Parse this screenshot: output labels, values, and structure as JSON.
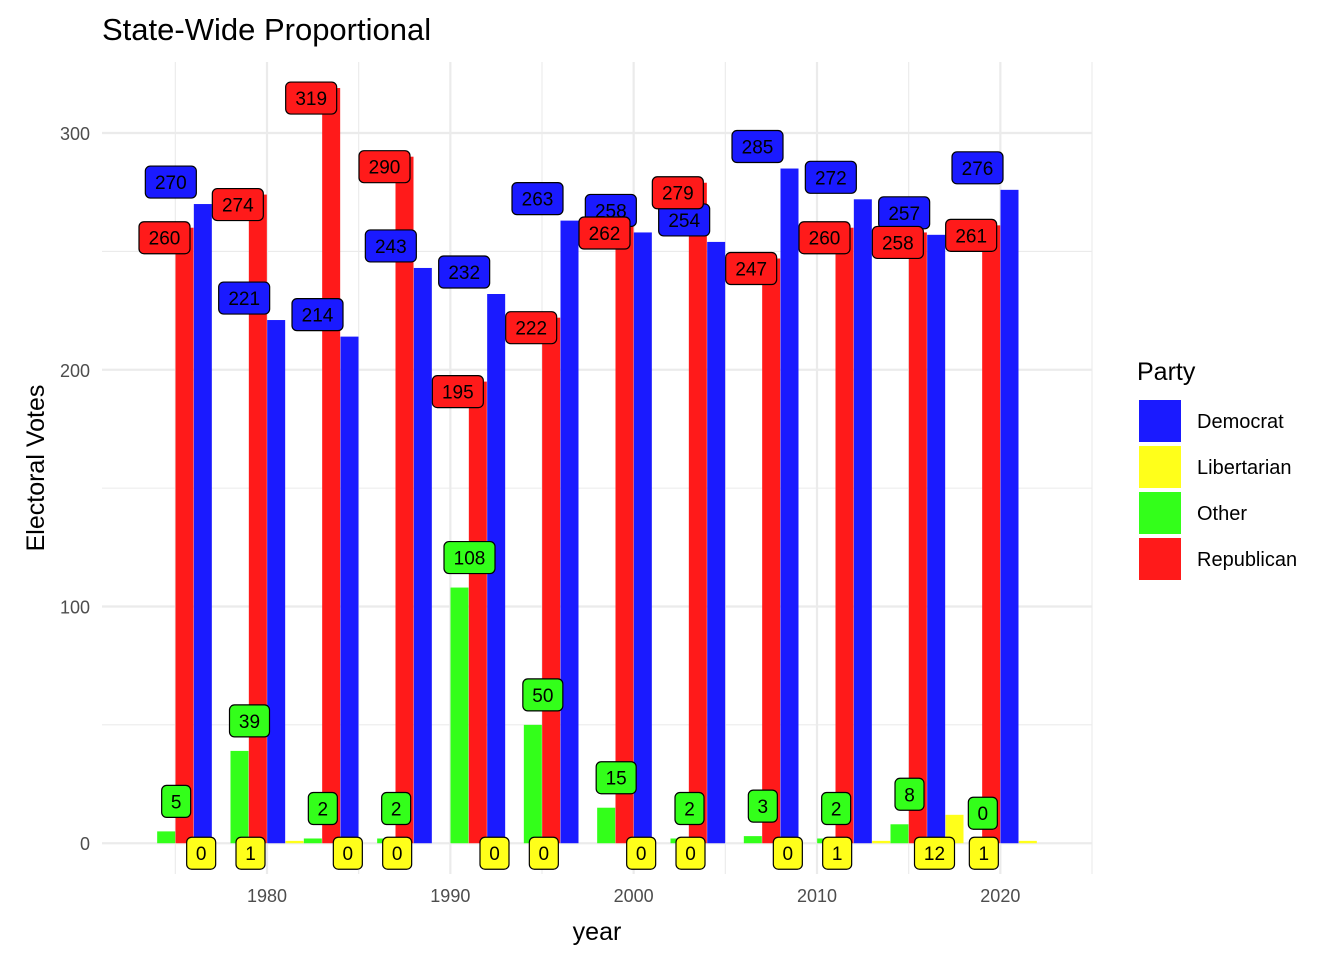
{
  "chart_data": {
    "type": "bar",
    "title": "State-Wide Proportional",
    "xlabel": "year",
    "ylabel": "Electoral Votes",
    "xlim": [
      1971,
      2025
    ],
    "ylim": [
      -13,
      330
    ],
    "x_ticks": [
      1980,
      1990,
      2000,
      2010,
      2020
    ],
    "y_ticks": [
      0,
      100,
      200,
      300
    ],
    "grid": true,
    "legend": {
      "title": "Party",
      "position": "right",
      "items": [
        {
          "name": "Democrat",
          "color": "#1a1aff"
        },
        {
          "name": "Libertarian",
          "color": "#ffff1a"
        },
        {
          "name": "Other",
          "color": "#33ff1a"
        },
        {
          "name": "Republican",
          "color": "#ff1a1a"
        }
      ]
    },
    "colors": {
      "Democrat": "#1a1aff",
      "Libertarian": "#ffff1a",
      "Other": "#33ff1a",
      "Republican": "#ff1a1a"
    },
    "years": [
      1976,
      1980,
      1984,
      1988,
      1992,
      1996,
      2000,
      2004,
      2008,
      2012,
      2016,
      2020
    ],
    "series": [
      {
        "name": "Democrat",
        "values": [
          270,
          221,
          214,
          243,
          232,
          263,
          258,
          254,
          285,
          272,
          257,
          276
        ]
      },
      {
        "name": "Libertarian",
        "values": [
          0,
          1,
          0,
          0,
          0,
          0,
          0,
          0,
          0,
          1,
          12,
          1
        ]
      },
      {
        "name": "Other",
        "values": [
          5,
          39,
          2,
          2,
          108,
          50,
          15,
          2,
          3,
          2,
          8,
          0
        ]
      },
      {
        "name": "Republican",
        "values": [
          260,
          274,
          319,
          290,
          195,
          222,
          262,
          279,
          247,
          260,
          258,
          261
        ]
      }
    ],
    "annotations": [
      {
        "text": "270",
        "party": "Democrat",
        "year": 1976,
        "value": 270
      },
      {
        "text": "221",
        "party": "Democrat",
        "year": 1980,
        "value": 221
      },
      {
        "text": "214",
        "party": "Democrat",
        "year": 1984,
        "value": 214
      },
      {
        "text": "243",
        "party": "Democrat",
        "year": 1988,
        "value": 243
      },
      {
        "text": "232",
        "party": "Democrat",
        "year": 1992,
        "value": 232
      },
      {
        "text": "263",
        "party": "Democrat",
        "year": 1996,
        "value": 263
      },
      {
        "text": "258",
        "party": "Democrat",
        "year": 2000,
        "value": 258
      },
      {
        "text": "254",
        "party": "Democrat",
        "year": 2004,
        "value": 254
      },
      {
        "text": "285",
        "party": "Democrat",
        "year": 2008,
        "value": 285
      },
      {
        "text": "272",
        "party": "Democrat",
        "year": 2012,
        "value": 272
      },
      {
        "text": "257",
        "party": "Democrat",
        "year": 2016,
        "value": 257
      },
      {
        "text": "276",
        "party": "Democrat",
        "year": 2020,
        "value": 276
      },
      {
        "text": "260",
        "party": "Republican",
        "year": 1976,
        "value": 260
      },
      {
        "text": "274",
        "party": "Republican",
        "year": 1980,
        "value": 274
      },
      {
        "text": "319",
        "party": "Republican",
        "year": 1984,
        "value": 319
      },
      {
        "text": "290",
        "party": "Republican",
        "year": 1988,
        "value": 290
      },
      {
        "text": "195",
        "party": "Republican",
        "year": 1992,
        "value": 195
      },
      {
        "text": "222",
        "party": "Republican",
        "year": 1996,
        "value": 222
      },
      {
        "text": "262",
        "party": "Republican",
        "year": 2000,
        "value": 262
      },
      {
        "text": "279",
        "party": "Republican",
        "year": 2004,
        "value": 279
      },
      {
        "text": "247",
        "party": "Republican",
        "year": 2008,
        "value": 247
      },
      {
        "text": "260",
        "party": "Republican",
        "year": 2012,
        "value": 260
      },
      {
        "text": "258",
        "party": "Republican",
        "year": 2016,
        "value": 258
      },
      {
        "text": "261",
        "party": "Republican",
        "year": 2020,
        "value": 261
      },
      {
        "text": "5",
        "party": "Other",
        "year": 1976,
        "value": 5
      },
      {
        "text": "39",
        "party": "Other",
        "year": 1980,
        "value": 39
      },
      {
        "text": "2",
        "party": "Other",
        "year": 1984,
        "value": 2
      },
      {
        "text": "2",
        "party": "Other",
        "year": 1988,
        "value": 2
      },
      {
        "text": "108",
        "party": "Other",
        "year": 1992,
        "value": 108
      },
      {
        "text": "50",
        "party": "Other",
        "year": 1996,
        "value": 50
      },
      {
        "text": "15",
        "party": "Other",
        "year": 2000,
        "value": 15
      },
      {
        "text": "2",
        "party": "Other",
        "year": 2004,
        "value": 2
      },
      {
        "text": "3",
        "party": "Other",
        "year": 2008,
        "value": 3
      },
      {
        "text": "2",
        "party": "Other",
        "year": 2012,
        "value": 2
      },
      {
        "text": "8",
        "party": "Other",
        "year": 2016,
        "value": 8
      },
      {
        "text": "0",
        "party": "Other",
        "year": 2020,
        "value": 0
      },
      {
        "text": "0",
        "party": "Libertarian",
        "year": 1976,
        "value": 0
      },
      {
        "text": "1",
        "party": "Libertarian",
        "year": 1980,
        "value": 1
      },
      {
        "text": "0",
        "party": "Libertarian",
        "year": 1984,
        "value": 0
      },
      {
        "text": "0",
        "party": "Libertarian",
        "year": 1988,
        "value": 0
      },
      {
        "text": "0",
        "party": "Libertarian",
        "year": 1992,
        "value": 0
      },
      {
        "text": "0",
        "party": "Libertarian",
        "year": 1996,
        "value": 0
      },
      {
        "text": "0",
        "party": "Libertarian",
        "year": 2000,
        "value": 0
      },
      {
        "text": "0",
        "party": "Libertarian",
        "year": 2004,
        "value": 0
      },
      {
        "text": "0",
        "party": "Libertarian",
        "year": 2008,
        "value": 0
      },
      {
        "text": "1",
        "party": "Libertarian",
        "year": 2012,
        "value": 1
      },
      {
        "text": "12",
        "party": "Libertarian",
        "year": 2016,
        "value": 12
      },
      {
        "text": "1",
        "party": "Libertarian",
        "year": 2020,
        "value": 1
      }
    ]
  }
}
